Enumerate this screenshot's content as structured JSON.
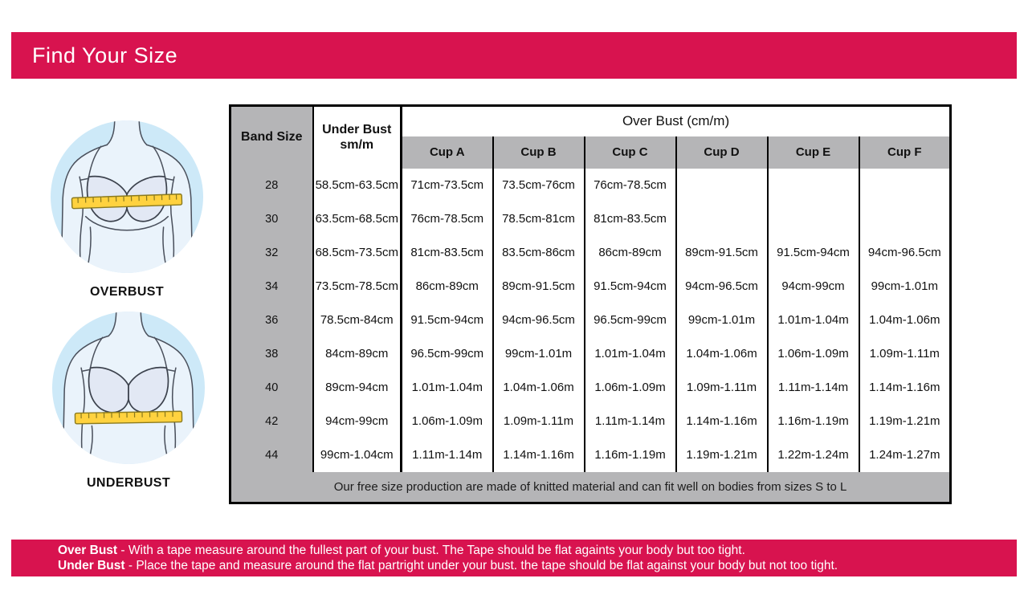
{
  "header": {
    "title": "Find Your Size"
  },
  "illustrations": {
    "overbust_label": "OVERBUST",
    "underbust_label": "UNDERBUST"
  },
  "table": {
    "over_bust_header": "Over Bust (cm/m)",
    "band_size_header": "Band Size",
    "under_bust_header": "Under Bust",
    "under_bust_sub": "sm/m",
    "cup_headers": [
      "Cup A",
      "Cup B",
      "Cup C",
      "Cup D",
      "Cup E",
      "Cup F"
    ],
    "rows": [
      {
        "band": "28",
        "under": "58.5cm-63.5cm",
        "cups": [
          "71cm-73.5cm",
          "73.5cm-76cm",
          "76cm-78.5cm",
          "",
          "",
          ""
        ]
      },
      {
        "band": "30",
        "under": "63.5cm-68.5cm",
        "cups": [
          "76cm-78.5cm",
          "78.5cm-81cm",
          "81cm-83.5cm",
          "",
          "",
          ""
        ]
      },
      {
        "band": "32",
        "under": "68.5cm-73.5cm",
        "cups": [
          "81cm-83.5cm",
          "83.5cm-86cm",
          "86cm-89cm",
          "89cm-91.5cm",
          "91.5cm-94cm",
          "94cm-96.5cm"
        ]
      },
      {
        "band": "34",
        "under": "73.5cm-78.5cm",
        "cups": [
          "86cm-89cm",
          "89cm-91.5cm",
          "91.5cm-94cm",
          "94cm-96.5cm",
          "94cm-99cm",
          "99cm-1.01m"
        ]
      },
      {
        "band": "36",
        "under": "78.5cm-84cm",
        "cups": [
          "91.5cm-94cm",
          "94cm-96.5cm",
          "96.5cm-99cm",
          "99cm-1.01m",
          "1.01m-1.04m",
          "1.04m-1.06m"
        ]
      },
      {
        "band": "38",
        "under": "84cm-89cm",
        "cups": [
          "96.5cm-99cm",
          "99cm-1.01m",
          "1.01m-1.04m",
          "1.04m-1.06m",
          "1.06m-1.09m",
          "1.09m-1.11m"
        ]
      },
      {
        "band": "40",
        "under": "89cm-94cm",
        "cups": [
          "1.01m-1.04m",
          "1.04m-1.06m",
          "1.06m-1.09m",
          "1.09m-1.11m",
          "1.11m-1.14m",
          "1.14m-1.16m"
        ]
      },
      {
        "band": "42",
        "under": "94cm-99cm",
        "cups": [
          "1.06m-1.09m",
          "1.09m-1.11m",
          "1.11m-1.14m",
          "1.14m-1.16m",
          "1.16m-1.19m",
          "1.19m-1.21m"
        ]
      },
      {
        "band": "44",
        "under": "99cm-1.04cm",
        "cups": [
          "1.11m-1.14m",
          "1.14m-1.16m",
          "1.16m-1.19m",
          "1.19m-1.21m",
          "1.22m-1.24m",
          "1.24m-1.27m"
        ]
      }
    ],
    "footnote": "Our free size production are made of knitted material and can fit well on bodies from sizes S to L"
  },
  "footer": {
    "line1": {
      "bold": "Over Bust",
      "rest": " - With a tape measure around the fullest part of your bust. The Tape should be flat againts your body but too tight."
    },
    "line2": {
      "bold": "Under Bust",
      "rest": " - Place the tape and measure around the flat partright under your bust. the tape should be flat against your body but not too tight."
    }
  },
  "colors": {
    "accent_pink": "#d8134f",
    "header_gray": "#b5b5b7",
    "circle_blue": "#cde9f8",
    "tape_yellow": "#ffd23f"
  }
}
